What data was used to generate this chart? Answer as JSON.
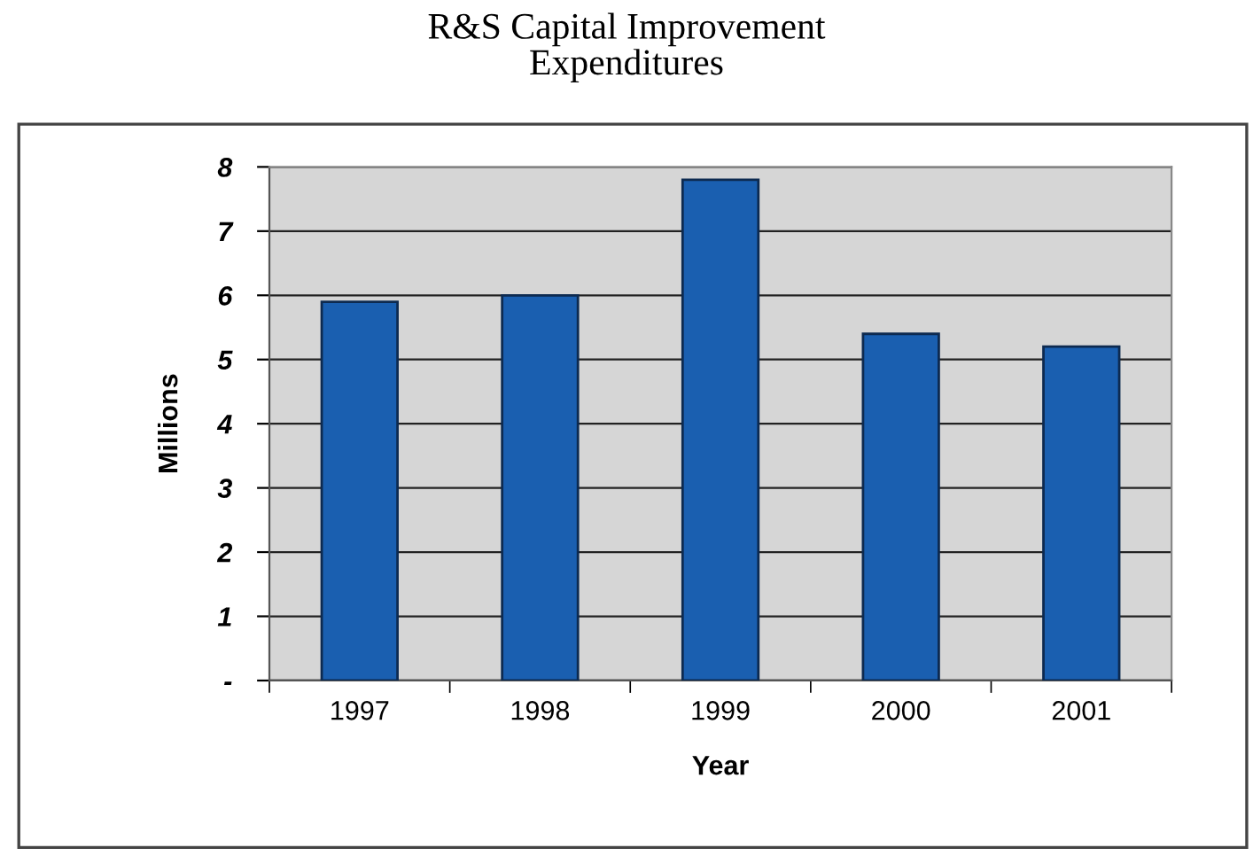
{
  "chart_data": {
    "type": "bar",
    "title": "R&S Capital Improvement\nExpenditures",
    "xlabel": "Year",
    "ylabel": "Millions",
    "categories": [
      "1997",
      "1998",
      "1999",
      "2000",
      "2001"
    ],
    "series": [
      {
        "color": "#1a5fb0",
        "values": [
          5.9,
          6.0,
          7.8,
          5.4,
          5.2
        ]
      }
    ],
    "ylim": [
      0,
      8
    ],
    "yticks": [
      {
        "value": 0,
        "label": "-"
      },
      1,
      2,
      3,
      4,
      5,
      6,
      7,
      8
    ],
    "grid": "y",
    "legend": false
  }
}
